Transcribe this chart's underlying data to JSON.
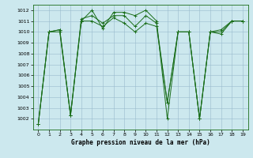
{
  "xlabel": "Graphe pression niveau de la mer (hPa)",
  "ylim": [
    1001,
    1012.5
  ],
  "xlim": [
    -0.5,
    19.5
  ],
  "yticks": [
    1002,
    1003,
    1004,
    1005,
    1006,
    1007,
    1008,
    1009,
    1010,
    1011,
    1012
  ],
  "ytick_labels": [
    "1002",
    "1003",
    "1004",
    "1005",
    "1006",
    "1007",
    "1008",
    "1009",
    "1010",
    "1011",
    "1012"
  ],
  "xticks": [
    0,
    1,
    2,
    3,
    4,
    5,
    6,
    7,
    8,
    9,
    10,
    11,
    12,
    13,
    14,
    15,
    16,
    17,
    18,
    19
  ],
  "line_color": "#1a6e1a",
  "bg_color": "#cce8ee",
  "grid_color": "#99bbcc",
  "series1": [
    1001.5,
    1010.0,
    1010.0,
    1002.3,
    1011.0,
    1012.0,
    1010.3,
    1011.8,
    1011.8,
    1011.5,
    1012.0,
    1011.0,
    1002.0,
    1010.0,
    1010.0,
    1002.0,
    1010.0,
    1009.8,
    1011.0,
    1011.0
  ],
  "series2": [
    1001.5,
    1010.0,
    1010.2,
    1002.3,
    1011.2,
    1011.5,
    1010.8,
    1011.5,
    1011.5,
    1010.5,
    1011.5,
    1010.8,
    1003.5,
    1010.0,
    1010.0,
    1002.0,
    1010.0,
    1010.0,
    1011.0,
    1011.0
  ],
  "series3": [
    1001.5,
    1010.0,
    1010.2,
    1002.3,
    1011.0,
    1011.0,
    1010.5,
    1011.3,
    1010.8,
    1010.0,
    1010.8,
    1010.5,
    1003.5,
    1010.0,
    1010.0,
    1002.0,
    1010.0,
    1010.2,
    1011.0,
    1011.0
  ]
}
